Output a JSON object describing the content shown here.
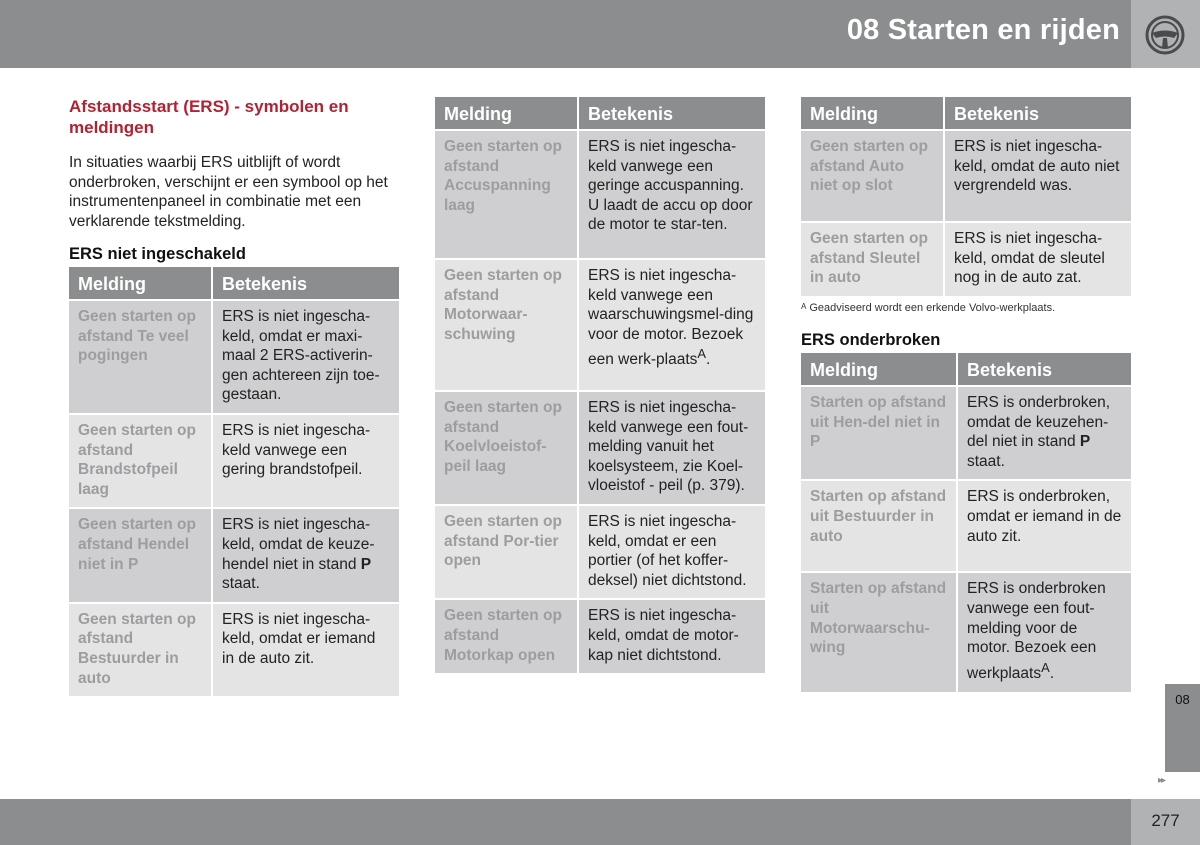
{
  "header": {
    "chapter_title": "08 Starten en rijden",
    "icon": "steering-wheel-icon"
  },
  "section": {
    "title": "Afstandsstart (ERS) - symbolen en meldingen",
    "intro": "In situaties waarbij ERS uitblijft of wordt onderbroken, verschijnt er een symbool op het instrumentenpaneel in combinatie met een verklarende tekstmelding."
  },
  "table_headers": {
    "melding": "Melding",
    "betekenis": "Betekenis"
  },
  "ers_niet_ingeschakeld": {
    "heading": "ERS niet ingeschakeld",
    "rows": [
      {
        "melding": "Geen starten op afstand Te veel pogingen",
        "betekenis": "ERS is niet ingescha-keld, omdat er maxi-maal 2 ERS-activerin-gen achtereen zijn toe-gestaan."
      },
      {
        "melding": "Geen starten op afstand Brandstofpeil laag",
        "betekenis": "ERS is niet ingescha-keld vanwege een gering brandstofpeil."
      },
      {
        "melding": "Geen starten op afstand Hendel niet in P",
        "betekenis_pre": "ERS is niet ingescha-keld, omdat de keuze-hendel niet in stand ",
        "betekenis_bold": "P",
        "betekenis_post": " staat."
      },
      {
        "melding": "Geen starten op afstand Bestuurder in auto",
        "betekenis": "ERS is niet ingescha-keld, omdat er iemand in de auto zit."
      }
    ]
  },
  "middle_table": {
    "rows": [
      {
        "melding": "Geen starten op afstand Accuspanning laag",
        "betekenis": "ERS is niet ingescha-keld vanwege een geringe accuspanning. U laadt de accu op door de motor te star-ten."
      },
      {
        "melding": "Geen starten op afstand Motorwaar-schuwing",
        "betekenis_pre": "ERS is niet ingescha-keld vanwege een waarschuwingsmel-ding voor de motor. Bezoek een werk-plaats",
        "betekenis_sup": "A",
        "betekenis_post": "."
      },
      {
        "melding": "Geen starten op afstand Koelvloeistof-peil laag",
        "betekenis": "ERS is niet ingescha-keld vanwege een fout-melding vanuit het koelsysteem, zie Koel-vloeistof - peil (p. 379)."
      },
      {
        "melding": "Geen starten op afstand Por-tier open",
        "betekenis": "ERS is niet ingescha-keld, omdat er een portier (of het koffer-deksel) niet dichtstond."
      },
      {
        "melding": "Geen starten op afstand Motorkap open",
        "betekenis": "ERS is niet ingescha-keld, omdat de motor-kap niet dichtstond."
      }
    ]
  },
  "right_table": {
    "rows": [
      {
        "melding": "Geen starten op afstand Auto niet op slot",
        "betekenis": "ERS is niet ingescha-keld, omdat de auto niet vergrendeld was."
      },
      {
        "melding": "Geen starten op afstand Sleutel in auto",
        "betekenis": "ERS is niet ingescha-keld, omdat de sleutel nog in de auto zat."
      }
    ]
  },
  "footnote": {
    "marker": "A",
    "text": "Geadviseerd wordt een erkende Volvo-werkplaats."
  },
  "ers_onderbroken": {
    "heading": "ERS onderbroken",
    "rows": [
      {
        "melding": "Starten op afstand uit Hen-del niet in P",
        "betekenis_pre": "ERS is onderbroken, omdat de keuzehen-del niet in stand ",
        "betekenis_bold": "P",
        "betekenis_post": " staat."
      },
      {
        "melding": "Starten op afstand uit Bestuurder in auto",
        "betekenis": "ERS is onderbroken, omdat er iemand in de auto zit."
      },
      {
        "melding": "Starten op afstand uit Motorwaarschu-wing",
        "betekenis_pre": "ERS is onderbroken vanwege een fout-melding voor de motor. Bezoek een werkplaats",
        "betekenis_sup": "A",
        "betekenis_post": "."
      }
    ]
  },
  "chapter_tab": "08",
  "next_arrows": "▸▸",
  "page_number": "277"
}
